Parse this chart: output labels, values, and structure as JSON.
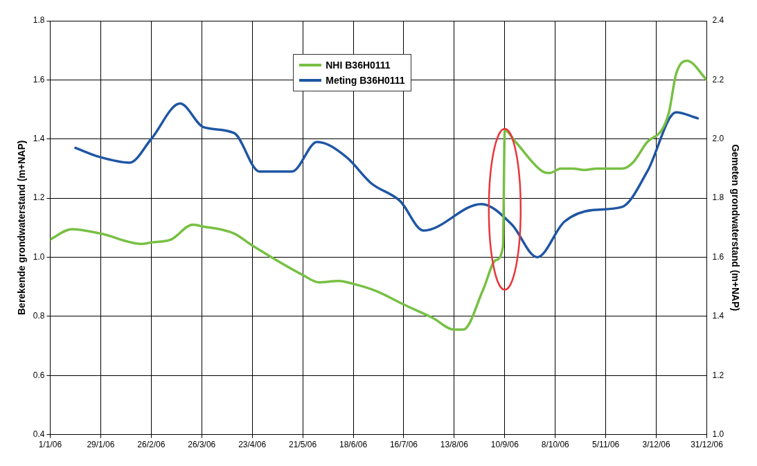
{
  "chart_data": {
    "type": "line",
    "xlabel": null,
    "ylabel": "Berekende grondwaterstand (m+NAP)",
    "y2label": "Gemeten grondwaterstand (m+NAP)",
    "xlim": [
      "2006-01-01",
      "2006-12-31"
    ],
    "xticks": [
      {
        "value": "2006-01-01",
        "label": "1/1/06"
      },
      {
        "value": "2006-01-29",
        "label": "29/1/06"
      },
      {
        "value": "2006-02-26",
        "label": "26/2/06"
      },
      {
        "value": "2006-03-26",
        "label": "26/3/06"
      },
      {
        "value": "2006-04-23",
        "label": "23/4/06"
      },
      {
        "value": "2006-05-21",
        "label": "21/5/06"
      },
      {
        "value": "2006-06-18",
        "label": "18/6/06"
      },
      {
        "value": "2006-07-16",
        "label": "16/7/06"
      },
      {
        "value": "2006-08-13",
        "label": "13/8/06"
      },
      {
        "value": "2006-09-10",
        "label": "10/9/06"
      },
      {
        "value": "2006-10-08",
        "label": "8/10/06"
      },
      {
        "value": "2006-11-05",
        "label": "5/11/06"
      },
      {
        "value": "2006-12-03",
        "label": "3/12/06"
      },
      {
        "value": "2006-12-31",
        "label": "31/12/06"
      }
    ],
    "ylim": [
      0.4,
      1.8
    ],
    "yticks": [
      0.4,
      0.6,
      0.8,
      {
        "value": 1.0,
        "label": "1.0"
      },
      1.2,
      1.4,
      1.6,
      1.8
    ],
    "y2lim": [
      1.0,
      2.4
    ],
    "y2ticks": [
      {
        "value": 1.0,
        "label": "1.0"
      },
      1.2,
      1.4,
      1.6,
      1.8,
      {
        "value": 2.0,
        "label": "2.0"
      },
      2.2,
      2.4
    ],
    "grid": true,
    "legend": "top",
    "marker": "none",
    "line_style": "solid",
    "series": [
      {
        "name": "NHI B36H0111",
        "color": "#77c043",
        "axis": "y",
        "x": [
          "2006-01-01",
          "2006-01-13",
          "2006-01-29",
          "2006-02-21",
          "2006-02-26",
          "2006-03-09",
          "2006-03-21",
          "2006-03-26",
          "2006-04-13",
          "2006-04-23",
          "2006-05-21",
          "2006-05-30",
          "2006-06-10",
          "2006-06-18",
          "2006-07-01",
          "2006-07-16",
          "2006-08-01",
          "2006-08-13",
          "2006-08-18",
          "2006-08-29",
          "2006-09-05",
          "2006-09-09",
          "2006-09-10",
          "2006-09-16",
          "2006-10-01",
          "2006-10-05",
          "2006-10-11",
          "2006-10-18",
          "2006-10-24",
          "2006-10-31",
          "2006-11-14",
          "2006-11-20",
          "2006-11-28",
          "2006-12-06",
          "2006-12-10",
          "2006-12-14",
          "2006-12-20",
          "2006-12-31"
        ],
        "values": [
          1.06,
          1.095,
          1.08,
          1.045,
          1.05,
          1.06,
          1.11,
          1.105,
          1.08,
          1.04,
          0.94,
          0.915,
          0.92,
          0.91,
          0.885,
          0.84,
          0.795,
          0.755,
          0.755,
          0.89,
          0.99,
          1.035,
          1.43,
          1.39,
          1.29,
          1.285,
          1.3,
          1.3,
          1.295,
          1.3,
          1.3,
          1.32,
          1.39,
          1.43,
          1.49,
          1.62,
          1.665,
          1.6
        ]
      },
      {
        "name": "Meting B36H0111",
        "color": "#1f56a3",
        "axis": "y2",
        "x": [
          "2006-01-15",
          "2006-01-28",
          "2006-02-14",
          "2006-02-26",
          "2006-03-14",
          "2006-03-27",
          "2006-04-13",
          "2006-04-27",
          "2006-05-15",
          "2006-05-29",
          "2006-06-14",
          "2006-06-28",
          "2006-07-14",
          "2006-07-27",
          "2006-08-28",
          "2006-09-14",
          "2006-09-28",
          "2006-10-13",
          "2006-10-29",
          "2006-11-14",
          "2006-11-28",
          "2006-12-14",
          "2006-12-26"
        ],
        "values": [
          1.97,
          1.94,
          1.92,
          2.0,
          2.12,
          2.04,
          2.02,
          1.89,
          1.89,
          1.99,
          1.94,
          1.85,
          1.79,
          1.69,
          1.78,
          1.71,
          1.6,
          1.72,
          1.76,
          1.77,
          1.89,
          2.09,
          2.07
        ]
      }
    ]
  }
}
